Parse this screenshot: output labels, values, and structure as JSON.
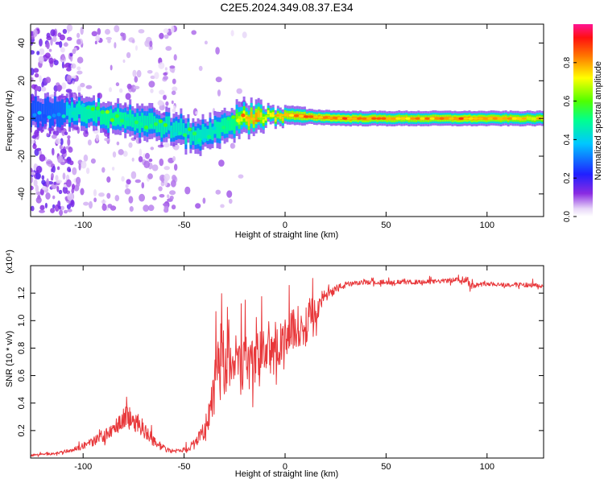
{
  "title": "C2E5.2024.349.08.37.E34",
  "colors": {
    "snr_line": "#e8373a",
    "background": "#ffffff"
  },
  "chart_data": [
    {
      "type": "heatmap",
      "xlabel": "Height of straight line (km)",
      "ylabel": "Frequency (Hz)",
      "xlim": [
        -126,
        128
      ],
      "ylim": [
        -52,
        50
      ],
      "x_ticks": [
        -100,
        -50,
        0,
        50,
        100
      ],
      "y_ticks": [
        -40,
        -20,
        0,
        20,
        40
      ],
      "colorbar": {
        "label": "Normalized spectral amplitude",
        "range": [
          0,
          1
        ],
        "ticks": [
          "0.0",
          "0.2",
          "0.4",
          "0.6",
          "0.8"
        ],
        "colormap": "rainbow (white-purple-blue-cyan-green-yellow-red-magenta)"
      },
      "ridge": {
        "x": [
          -126,
          -110,
          -100,
          -90,
          -80,
          -70,
          -60,
          -50,
          -45,
          -40,
          -35,
          -30,
          -25,
          -20,
          -15,
          -10,
          0,
          10,
          30,
          60,
          90,
          128
        ],
        "frequency_hz": [
          3,
          4,
          4,
          2,
          0,
          -2,
          -4,
          -7,
          -9,
          -9,
          -6,
          -3,
          -2,
          0,
          1,
          1,
          2,
          1,
          0,
          0,
          0,
          0
        ],
        "peak_amplitude": [
          0.3,
          0.4,
          0.5,
          0.55,
          0.55,
          0.5,
          0.5,
          0.45,
          0.5,
          0.45,
          0.5,
          0.55,
          0.6,
          0.8,
          0.9,
          0.75,
          0.85,
          0.9,
          0.9,
          0.85,
          0.9,
          0.8
        ]
      }
    },
    {
      "type": "line",
      "xlabel": "Height of straight line (km)",
      "ylabel": "SNR (10 * v/v)",
      "y_scale_note": "(x10⁴)",
      "xlim": [
        -126,
        128
      ],
      "ylim": [
        0.0,
        1.4
      ],
      "x_ticks": [
        -100,
        -50,
        0,
        50,
        100
      ],
      "y_ticks": [
        "0.2",
        "0.4",
        "0.6",
        "0.8",
        "1.0",
        "1.2"
      ],
      "series": [
        {
          "x": [
            -126,
            -115,
            -105,
            -95,
            -85,
            -80,
            -75,
            -70,
            -65,
            -60,
            -55,
            -50,
            -45,
            -40,
            -37,
            -35,
            -32,
            -30,
            -28,
            -25,
            -22,
            -20,
            -17,
            -15,
            -12,
            -10,
            -7,
            -5,
            -2,
            0,
            3,
            5,
            8,
            10,
            13,
            15,
            18,
            20,
            25,
            30,
            35,
            40,
            50,
            60,
            70,
            80,
            88,
            90,
            92,
            95,
            100,
            110,
            120,
            128
          ],
          "values": [
            0.02,
            0.03,
            0.06,
            0.12,
            0.2,
            0.3,
            0.28,
            0.22,
            0.12,
            0.07,
            0.05,
            0.06,
            0.1,
            0.2,
            0.35,
            0.5,
            0.75,
            0.6,
            0.8,
            0.7,
            0.65,
            0.75,
            0.7,
            0.72,
            0.78,
            0.8,
            0.75,
            0.85,
            0.82,
            0.85,
            0.9,
            0.95,
            0.95,
            0.95,
            1.05,
            1.05,
            1.15,
            1.18,
            1.23,
            1.26,
            1.27,
            1.28,
            1.28,
            1.28,
            1.28,
            1.29,
            1.3,
            1.3,
            1.26,
            1.26,
            1.27,
            1.26,
            1.26,
            1.25
          ],
          "noise_amplitude": [
            0.01,
            0.01,
            0.02,
            0.04,
            0.06,
            0.1,
            0.1,
            0.08,
            0.05,
            0.03,
            0.02,
            0.02,
            0.05,
            0.08,
            0.15,
            0.25,
            0.3,
            0.3,
            0.3,
            0.28,
            0.25,
            0.25,
            0.22,
            0.22,
            0.2,
            0.2,
            0.2,
            0.2,
            0.2,
            0.2,
            0.2,
            0.2,
            0.2,
            0.18,
            0.15,
            0.12,
            0.08,
            0.06,
            0.04,
            0.03,
            0.02,
            0.02,
            0.02,
            0.02,
            0.02,
            0.02,
            0.03,
            0.05,
            0.04,
            0.02,
            0.02,
            0.02,
            0.02,
            0.02
          ]
        }
      ]
    }
  ]
}
